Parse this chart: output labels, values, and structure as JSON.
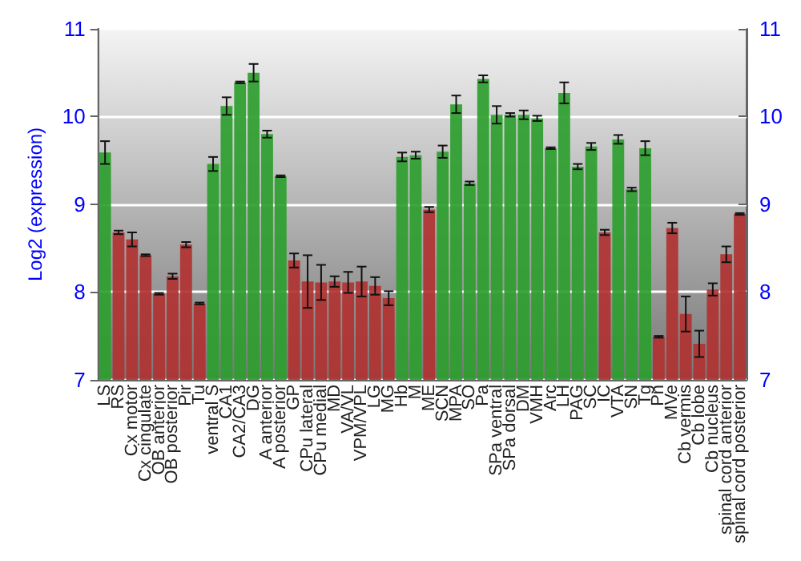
{
  "chart_data": {
    "type": "bar",
    "ylabel": "Log2 (expression)",
    "categories": [
      "LS",
      "RS",
      "Cx motor",
      "Cx cingulate",
      "OB anterior",
      "OB posterior",
      "Pir",
      "Tu",
      "ventral S",
      "CA1",
      "CA2/CA3",
      "DG",
      "A anterior",
      "A posterior",
      "GP",
      "CPu lateral",
      "CPu medial",
      "MD",
      "VA/VL",
      "VPM/VPL",
      "LG",
      "MG",
      "Hb",
      "M",
      "ME",
      "SCN",
      "MPA",
      "SO",
      "Pa",
      "SPa ventral",
      "SPa dorsal",
      "DM",
      "VMH",
      "Arc",
      "LH",
      "PAG",
      "SC",
      "IC",
      "VTA",
      "SN",
      "Tg",
      "Pn",
      "MVe",
      "Cb vermis",
      "Cb lobe",
      "Cb nucleus",
      "spinal cord anterior",
      "spinal cord posterior"
    ],
    "values": [
      9.59,
      8.68,
      8.6,
      8.42,
      7.98,
      8.18,
      8.54,
      7.87,
      9.46,
      10.12,
      10.39,
      10.5,
      9.8,
      9.32,
      8.36,
      8.12,
      8.11,
      8.12,
      8.11,
      8.12,
      8.07,
      7.93,
      9.54,
      9.56,
      8.94,
      9.6,
      10.14,
      9.24,
      10.43,
      10.02,
      10.02,
      10.02,
      9.98,
      9.64,
      10.27,
      9.43,
      9.66,
      8.68,
      9.74,
      9.17,
      9.64,
      7.49,
      8.73,
      7.75,
      7.41,
      8.03,
      8.43,
      8.89
    ],
    "errors": [
      0.13,
      0.02,
      0.08,
      0.01,
      0.01,
      0.03,
      0.03,
      0.01,
      0.08,
      0.1,
      0.01,
      0.1,
      0.04,
      0.01,
      0.08,
      0.3,
      0.2,
      0.06,
      0.12,
      0.17,
      0.1,
      0.08,
      0.05,
      0.04,
      0.03,
      0.07,
      0.1,
      0.02,
      0.04,
      0.1,
      0.02,
      0.05,
      0.03,
      0.01,
      0.12,
      0.03,
      0.04,
      0.03,
      0.05,
      0.02,
      0.08,
      0.01,
      0.06,
      0.2,
      0.15,
      0.07,
      0.09,
      0.01
    ],
    "colors": [
      "#2e9e2e",
      "#b03232",
      "#b03232",
      "#b03232",
      "#b03232",
      "#b03232",
      "#b03232",
      "#b03232",
      "#2e9e2e",
      "#2e9e2e",
      "#2e9e2e",
      "#2e9e2e",
      "#2e9e2e",
      "#2e9e2e",
      "#b03232",
      "#b03232",
      "#b03232",
      "#b03232",
      "#b03232",
      "#b03232",
      "#b03232",
      "#b03232",
      "#2e9e2e",
      "#2e9e2e",
      "#b03232",
      "#2e9e2e",
      "#2e9e2e",
      "#2e9e2e",
      "#2e9e2e",
      "#2e9e2e",
      "#2e9e2e",
      "#2e9e2e",
      "#2e9e2e",
      "#2e9e2e",
      "#2e9e2e",
      "#2e9e2e",
      "#2e9e2e",
      "#b03232",
      "#2e9e2e",
      "#2e9e2e",
      "#2e9e2e",
      "#b03232",
      "#b03232",
      "#b03232",
      "#b03232",
      "#b03232",
      "#b03232",
      "#b03232"
    ],
    "ylim": [
      7,
      11
    ],
    "yticks": [
      7,
      8,
      9,
      10,
      11
    ],
    "y2lim": [
      7,
      11
    ],
    "y2ticks": [
      7,
      8,
      9,
      10,
      11
    ],
    "grid": "y"
  }
}
